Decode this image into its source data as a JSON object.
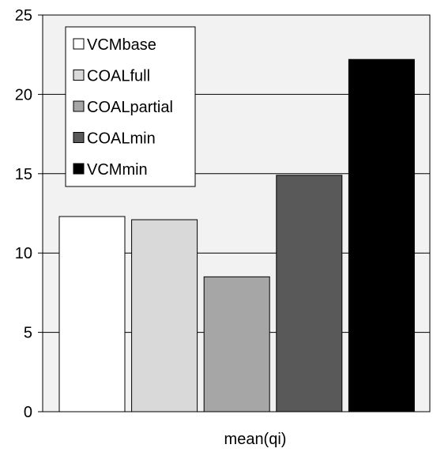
{
  "chart_data": {
    "type": "bar",
    "xlabel": "mean(qi)",
    "ylabel": "",
    "ylim": [
      0,
      25
    ],
    "yticks": [
      0,
      5,
      10,
      15,
      20,
      25
    ],
    "grid": true,
    "legend_position": "top-left",
    "plot_background": "#f2f2f2",
    "series": [
      {
        "name": "VCMbase",
        "value": 12.3,
        "color": "#ffffff"
      },
      {
        "name": "COALfull",
        "value": 12.1,
        "color": "#d9d9d9"
      },
      {
        "name": "COALpartial",
        "value": 8.5,
        "color": "#a6a6a6"
      },
      {
        "name": "COALmin",
        "value": 14.9,
        "color": "#595959"
      },
      {
        "name": "VCMmin",
        "value": 22.2,
        "color": "#000000"
      }
    ]
  }
}
